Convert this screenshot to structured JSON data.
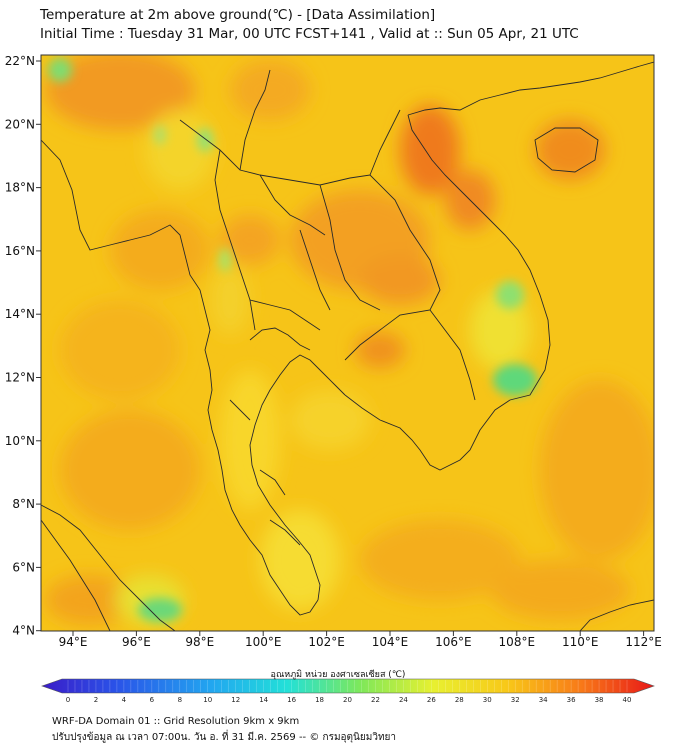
{
  "header": {
    "title_line1": "Temperature at 2m above ground(℃) - [Data Assimilation]",
    "title_line2": "Initial Time : Tuesday 31 Mar, 00 UTC FCST+141 , Valid at :: Sun 05 Apr, 21 UTC"
  },
  "map": {
    "lon_labels": [
      "94°E",
      "96°E",
      "98°E",
      "100°E",
      "102°E",
      "104°E",
      "106°E",
      "108°E",
      "110°E",
      "112°E"
    ],
    "lat_labels": [
      "22°N",
      "20°N",
      "18°N",
      "16°N",
      "14°N",
      "12°N",
      "10°N",
      "8°N",
      "6°N",
      "4°N"
    ],
    "background_color": "#f5c21a",
    "border_color": "#2a2a2a"
  },
  "colorbar": {
    "title": "อุณหภูมิ หน่วย องศาเซลเซียส (℃)",
    "tick_labels": [
      "0",
      "2",
      "4",
      "6",
      "8",
      "10",
      "12",
      "14",
      "16",
      "18",
      "20",
      "22",
      "24",
      "26",
      "28",
      "30",
      "32",
      "34",
      "36",
      "38",
      "40"
    ]
  },
  "footer": {
    "line1": "WRF-DA Domain 01 :: Grid Resolution 9km x 9km",
    "line2": "ปรับปรุงข้อมูล ณ เวลา 07:00น. วัน อ. ที่ 31 มี.ค. 2569 -- © กรมอุตุนิยมวิทยา"
  }
}
